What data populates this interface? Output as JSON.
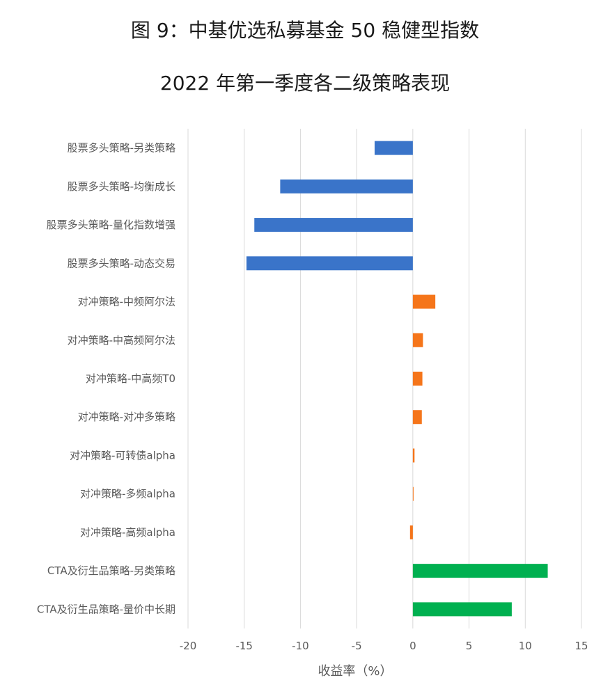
{
  "header": {
    "title_line1": "图 9：中基优选私募基金 50 稳健型指数",
    "title_line2": "2022 年第一季度各二级策略表现"
  },
  "chart_data": {
    "type": "bar",
    "orientation": "horizontal",
    "categories": [
      "股票多头策略-另类策略",
      "股票多头策略-均衡成长",
      "股票多头策略-量化指数增强",
      "股票多头策略-动态交易",
      "对冲策略-中频阿尔法",
      "对冲策略-中高频阿尔法",
      "对冲策略-中高频T0",
      "对冲策略-对冲多策略",
      "对冲策略-可转债alpha",
      "对冲策略-多频alpha",
      "对冲策略-高频alpha",
      "CTA及衍生品策略-另类策略",
      "CTA及衍生品策略-量价中长期"
    ],
    "values": [
      -3.4,
      -11.8,
      -14.1,
      -14.8,
      2.0,
      0.9,
      0.85,
      0.8,
      0.15,
      0.05,
      -0.25,
      12.0,
      8.8
    ],
    "colors": [
      "#3a74c9",
      "#3a74c9",
      "#3a74c9",
      "#3a74c9",
      "#f5751a",
      "#f5751a",
      "#f5751a",
      "#f5751a",
      "#f5751a",
      "#f5751a",
      "#f5751a",
      "#00b050",
      "#00b050"
    ],
    "xlim": [
      -20,
      15
    ],
    "xticks": [
      -20,
      -15,
      -10,
      -5,
      0,
      5,
      10,
      15
    ],
    "xlabel": "收益率（%）",
    "grid": true
  }
}
